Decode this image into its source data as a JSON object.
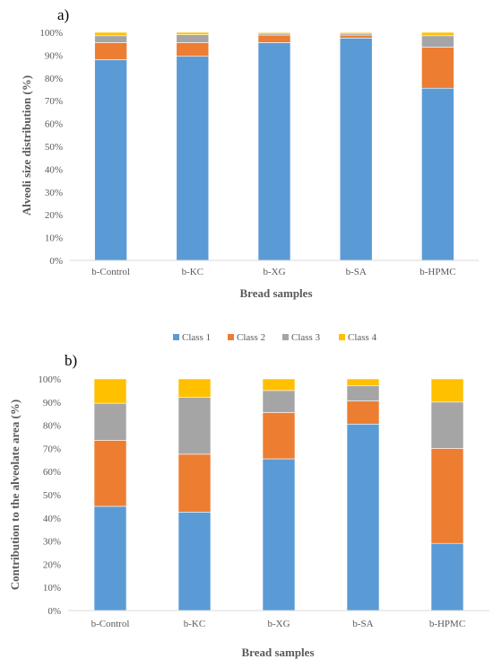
{
  "legend": {
    "entries": [
      "Class 1",
      "Class 2",
      "Class 3",
      "Class 4"
    ],
    "colors": [
      "#5B9BD5",
      "#ED7D31",
      "#A5A5A5",
      "#FFC000"
    ]
  },
  "chart_data": [
    {
      "type": "bar",
      "stacked": true,
      "panel_label": "a)",
      "categories": [
        "b-Control",
        "b-KC",
        "b-XG",
        "b-SA",
        "b-HPMC"
      ],
      "series": [
        {
          "name": "Class 1",
          "values": [
            88,
            89.5,
            95.5,
            97.5,
            75.5
          ]
        },
        {
          "name": "Class 2",
          "values": [
            7.5,
            6,
            3.3,
            1.3,
            18
          ]
        },
        {
          "name": "Class 3",
          "values": [
            3,
            3.5,
            0.8,
            0.8,
            5
          ]
        },
        {
          "name": "Class 4",
          "values": [
            1.5,
            1,
            0.4,
            0.4,
            1.5
          ]
        }
      ],
      "xlabel": "Bread samples",
      "ylabel": "Alveoli size distribution  (%)",
      "ylim": [
        0,
        100
      ],
      "yticks": [
        "0%",
        "10%",
        "20%",
        "30%",
        "40%",
        "50%",
        "60%",
        "70%",
        "80%",
        "90%",
        "100%"
      ],
      "grid": false,
      "legend_position": "bottom"
    },
    {
      "type": "bar",
      "stacked": true,
      "panel_label": "b)",
      "categories": [
        "b-Control",
        "b-KC",
        "b-XG",
        "b-SA",
        "b-HPMC"
      ],
      "series": [
        {
          "name": "Class 1",
          "values": [
            45,
            42.5,
            65.5,
            80.5,
            29
          ]
        },
        {
          "name": "Class 2",
          "values": [
            28.5,
            25,
            20,
            10,
            41
          ]
        },
        {
          "name": "Class 3",
          "values": [
            16,
            24.5,
            9.5,
            6.5,
            20
          ]
        },
        {
          "name": "Class 4",
          "values": [
            10.5,
            8,
            5,
            3,
            10
          ]
        }
      ],
      "xlabel": "Bread samples",
      "ylabel": "Contribution  to the alveolate area (%)",
      "ylim": [
        0,
        100
      ],
      "yticks": [
        "0%",
        "10%",
        "20%",
        "30%",
        "40%",
        "50%",
        "60%",
        "70%",
        "80%",
        "90%",
        "100%"
      ],
      "grid": false,
      "legend_position": "top"
    }
  ]
}
